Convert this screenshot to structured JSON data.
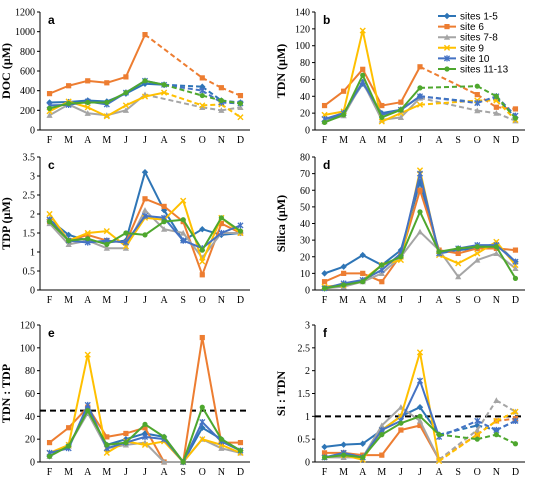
{
  "legend": {
    "position": "right of panel b",
    "entries": [
      {
        "key": "s1",
        "label": "sites 1-5",
        "color": "#2e75b6",
        "marker": "diamond"
      },
      {
        "key": "s6",
        "label": "site 6",
        "color": "#ed7d31",
        "marker": "square"
      },
      {
        "key": "s7",
        "label": "sites 7-8",
        "color": "#a5a5a5",
        "marker": "triangle"
      },
      {
        "key": "s9",
        "label": "site 9",
        "color": "#ffc000",
        "marker": "x"
      },
      {
        "key": "s10",
        "label": "site 10",
        "color": "#4472c4",
        "marker": "star"
      },
      {
        "key": "s11",
        "label": "sites 11-13",
        "color": "#4ea72e",
        "marker": "circle"
      }
    ]
  },
  "chart_data": [
    {
      "panel": "a",
      "type": "line",
      "ylabel": "DOC (µM)",
      "categories": [
        "F",
        "M",
        "A",
        "M",
        "J",
        "J",
        "A",
        "S",
        "O",
        "N",
        "D"
      ],
      "ylim": [
        0,
        1200
      ],
      "yticks": [
        0,
        200,
        400,
        600,
        800,
        1000,
        1200
      ],
      "dashed_from": 6,
      "series": [
        {
          "key": "s1",
          "values": [
            280,
            285,
            300,
            290,
            370,
            470,
            460,
            null,
            440,
            300,
            280
          ]
        },
        {
          "key": "s6",
          "values": [
            370,
            450,
            500,
            480,
            540,
            970,
            null,
            null,
            530,
            430,
            350
          ]
        },
        {
          "key": "s7",
          "values": [
            150,
            260,
            170,
            150,
            200,
            360,
            null,
            null,
            230,
            200,
            230
          ]
        },
        {
          "key": "s9",
          "values": [
            190,
            290,
            230,
            140,
            250,
            340,
            380,
            null,
            250,
            260,
            130
          ]
        },
        {
          "key": "s10",
          "values": [
            250,
            255,
            290,
            260,
            380,
            500,
            460,
            null,
            400,
            280,
            270
          ]
        },
        {
          "key": "s11",
          "values": [
            220,
            270,
            280,
            280,
            380,
            500,
            460,
            null,
            350,
            300,
            270
          ]
        }
      ]
    },
    {
      "panel": "b",
      "type": "line",
      "ylabel": "TDN (µM)",
      "categories": [
        "F",
        "M",
        "A",
        "M",
        "J",
        "J",
        "A",
        "S",
        "O",
        "N",
        "D"
      ],
      "ylim": [
        0,
        140
      ],
      "yticks": [
        0,
        20,
        40,
        60,
        80,
        100,
        120,
        140
      ],
      "dashed_from": 6,
      "series": [
        {
          "key": "s1",
          "values": [
            10,
            20,
            55,
            20,
            24,
            40,
            null,
            null,
            33,
            38,
            15
          ]
        },
        {
          "key": "s6",
          "values": [
            29,
            46,
            72,
            29,
            33,
            75,
            null,
            null,
            42,
            27,
            25
          ]
        },
        {
          "key": "s7",
          "values": [
            10,
            17,
            57,
            12,
            15,
            38,
            null,
            null,
            23,
            20,
            11
          ]
        },
        {
          "key": "s9",
          "values": [
            18,
            22,
            118,
            10,
            20,
            30,
            null,
            null,
            35,
            35,
            12
          ]
        },
        {
          "key": "s10",
          "values": [
            13,
            20,
            57,
            18,
            24,
            40,
            null,
            null,
            32,
            40,
            17
          ]
        },
        {
          "key": "s11",
          "values": [
            9,
            18,
            65,
            15,
            24,
            50,
            null,
            null,
            52,
            40,
            14
          ]
        }
      ]
    },
    {
      "panel": "c",
      "type": "line",
      "ylabel": "TDP (µM)",
      "categories": [
        "F",
        "M",
        "A",
        "M",
        "J",
        "J",
        "A",
        "S",
        "O",
        "N",
        "D"
      ],
      "ylim": [
        0,
        3.5
      ],
      "yticks": [
        0,
        0.5,
        1,
        1.5,
        2,
        2.5,
        3,
        3.5
      ],
      "series": [
        {
          "key": "s1",
          "values": [
            1.85,
            1.45,
            1.3,
            1.25,
            1.3,
            3.1,
            2.1,
            1.3,
            1.6,
            1.45,
            1.5
          ]
        },
        {
          "key": "s6",
          "values": [
            1.8,
            1.3,
            1.45,
            1.3,
            1.25,
            2.4,
            2.2,
            1.8,
            0.4,
            1.75,
            1.5
          ]
        },
        {
          "key": "s7",
          "values": [
            1.75,
            1.2,
            1.3,
            1.1,
            1.1,
            2.1,
            1.6,
            1.5,
            0.85,
            1.5,
            1.5
          ]
        },
        {
          "key": "s9",
          "values": [
            2.0,
            1.3,
            1.5,
            1.55,
            1.15,
            1.9,
            1.85,
            2.35,
            0.75,
            1.9,
            1.5
          ]
        },
        {
          "key": "s10",
          "values": [
            1.85,
            1.3,
            1.25,
            1.3,
            1.25,
            1.95,
            1.9,
            1.3,
            1.1,
            1.5,
            1.7
          ]
        },
        {
          "key": "s11",
          "values": [
            1.8,
            1.3,
            1.35,
            1.2,
            1.5,
            1.45,
            1.8,
            1.85,
            1.05,
            1.9,
            1.55
          ]
        }
      ]
    },
    {
      "panel": "d",
      "type": "line",
      "ylabel": "Silica (µM)",
      "categories": [
        "F",
        "M",
        "A",
        "M",
        "J",
        "J",
        "A",
        "S",
        "O",
        "N",
        "D"
      ],
      "ylim": [
        0,
        80
      ],
      "yticks": [
        0,
        10,
        20,
        30,
        40,
        50,
        60,
        70,
        80
      ],
      "series": [
        {
          "key": "s1",
          "values": [
            10,
            14,
            21,
            15,
            24,
            65,
            22,
            24,
            25,
            28,
            17
          ]
        },
        {
          "key": "s6",
          "values": [
            5,
            10,
            10,
            5,
            21,
            60,
            24,
            22,
            25,
            25,
            24
          ]
        },
        {
          "key": "s7",
          "values": [
            1,
            2,
            5,
            10,
            20,
            35,
            24,
            8,
            18,
            22,
            13
          ]
        },
        {
          "key": "s9",
          "values": [
            2,
            3,
            6,
            15,
            18,
            72,
            21,
            16,
            22,
            29,
            15
          ]
        },
        {
          "key": "s10",
          "values": [
            1,
            4,
            6,
            12,
            22,
            70,
            22,
            25,
            27,
            27,
            17
          ]
        },
        {
          "key": "s11",
          "values": [
            1,
            3,
            5,
            15,
            20,
            47,
            23,
            25,
            26,
            26,
            7
          ]
        }
      ]
    },
    {
      "panel": "e",
      "type": "line",
      "ylabel": "TDN : TDP",
      "categories": [
        "F",
        "M",
        "A",
        "M",
        "J",
        "J",
        "A",
        "S",
        "O",
        "N",
        "D"
      ],
      "ylim": [
        0,
        120
      ],
      "yticks": [
        0,
        20,
        40,
        60,
        80,
        100,
        120
      ],
      "reference_line": 45,
      "series": [
        {
          "key": "s1",
          "values": [
            5,
            15,
            43,
            15,
            20,
            25,
            22,
            0,
            30,
            20,
            10
          ]
        },
        {
          "key": "s6",
          "values": [
            17,
            30,
            48,
            22,
            25,
            30,
            0,
            0,
            109,
            17,
            17
          ]
        },
        {
          "key": "s7",
          "values": [
            5,
            14,
            43,
            12,
            15,
            17,
            0,
            0,
            20,
            12,
            8
          ]
        },
        {
          "key": "s9",
          "values": [
            8,
            15,
            94,
            8,
            18,
            15,
            18,
            0,
            20,
            15,
            8
          ]
        },
        {
          "key": "s10",
          "values": [
            8,
            12,
            50,
            12,
            17,
            22,
            20,
            0,
            35,
            18,
            10
          ]
        },
        {
          "key": "s11",
          "values": [
            5,
            14,
            45,
            15,
            17,
            33,
            22,
            0,
            48,
            20,
            10
          ]
        }
      ]
    },
    {
      "panel": "f",
      "type": "line",
      "ylabel": "Si : TDN",
      "categories": [
        "F",
        "M",
        "A",
        "M",
        "J",
        "J",
        "A",
        "S",
        "O",
        "N",
        "D"
      ],
      "ylim": [
        0,
        3
      ],
      "yticks": [
        0,
        0.5,
        1,
        1.5,
        2,
        2.5,
        3
      ],
      "reference_line": 1,
      "dashed_from": 6,
      "series": [
        {
          "key": "s1",
          "values": [
            0.33,
            0.38,
            0.4,
            0.7,
            1.0,
            1.2,
            0.6,
            null,
            0.8,
            0.7,
            0.9
          ]
        },
        {
          "key": "s6",
          "values": [
            0.2,
            0.2,
            0.15,
            0.15,
            0.7,
            0.8,
            0.05,
            null,
            0.6,
            0.9,
            0.95
          ]
        },
        {
          "key": "s7",
          "values": [
            0.1,
            0.1,
            0.1,
            0.8,
            1.2,
            0.9,
            0.05,
            null,
            0.7,
            1.35,
            1.1
          ]
        },
        {
          "key": "s9",
          "values": [
            0.1,
            0.15,
            0.05,
            0.7,
            1.0,
            2.4,
            0.02,
            null,
            0.6,
            0.9,
            1.1
          ]
        },
        {
          "key": "s10",
          "values": [
            0.1,
            0.2,
            0.1,
            0.7,
            0.9,
            1.78,
            0.55,
            null,
            0.9,
            0.7,
            0.9
          ]
        },
        {
          "key": "s11",
          "values": [
            0.1,
            0.15,
            0.1,
            0.6,
            0.85,
            1.0,
            0.6,
            null,
            0.5,
            0.6,
            0.4
          ]
        }
      ]
    }
  ]
}
